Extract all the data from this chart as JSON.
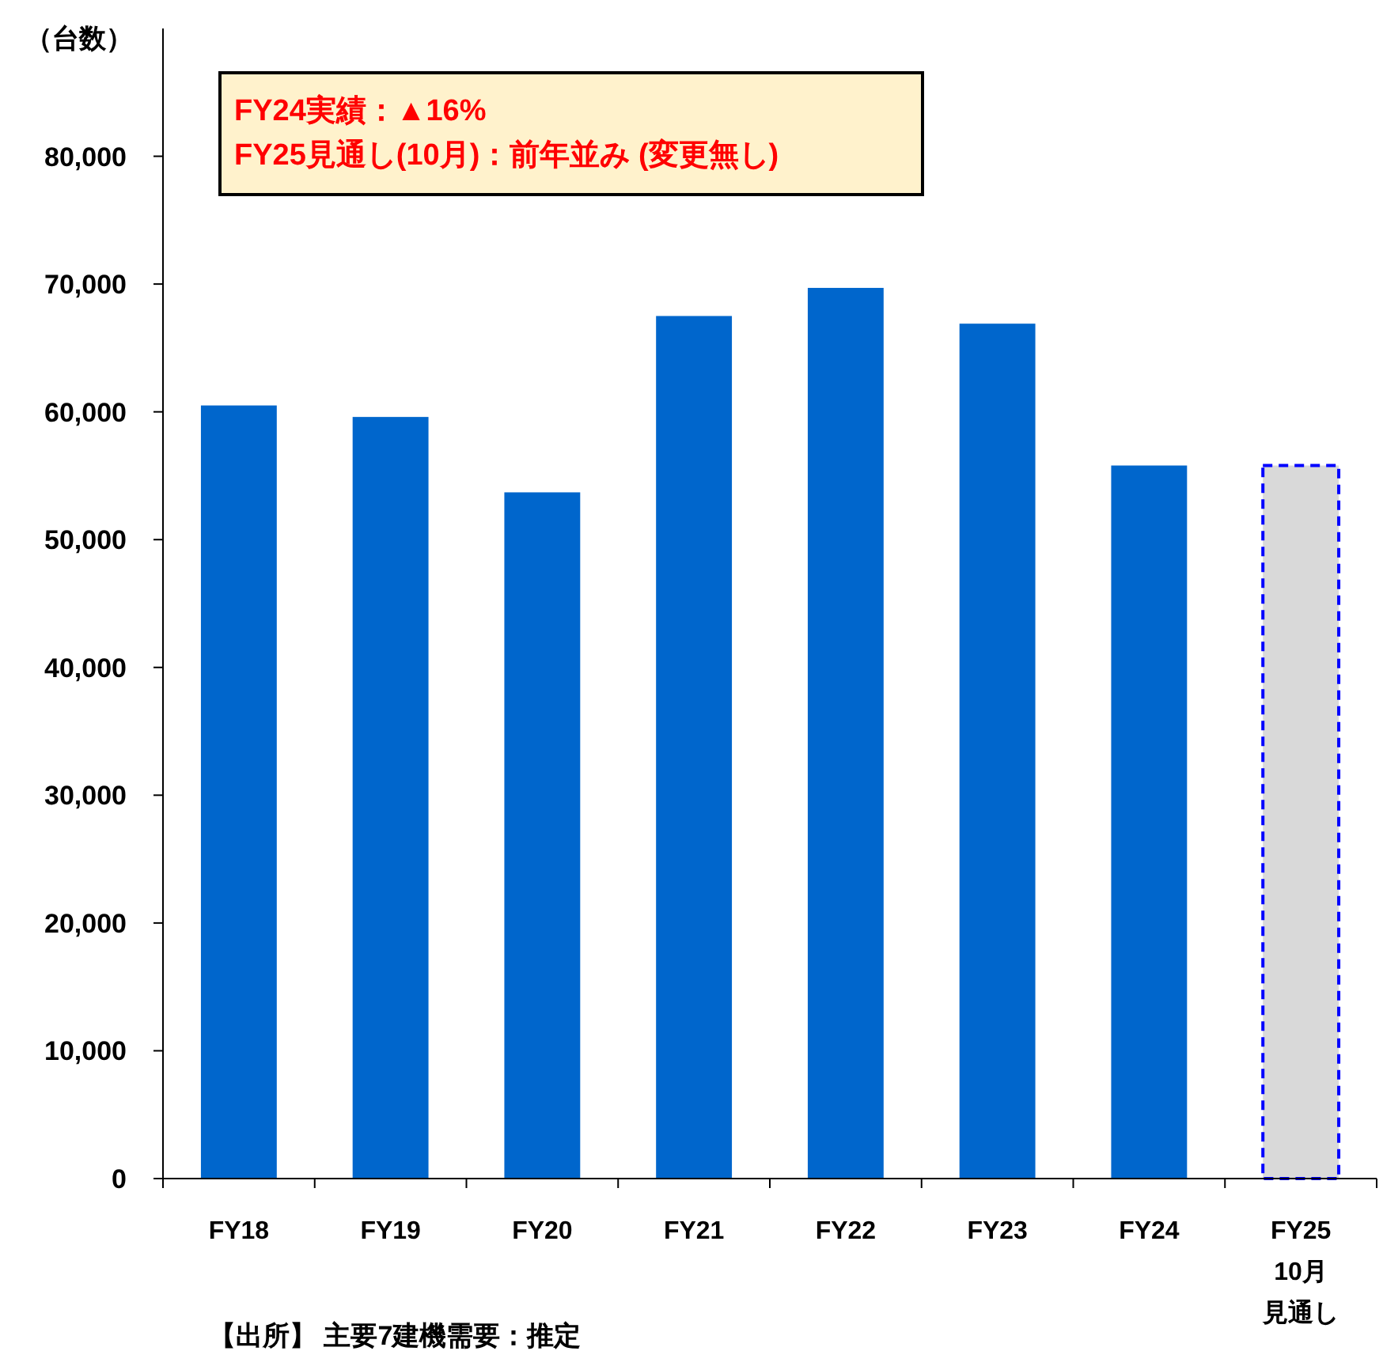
{
  "chart_data": {
    "type": "bar",
    "ylabel": "（台数）",
    "categories": [
      "FY18",
      "FY19",
      "FY20",
      "FY21",
      "FY22",
      "FY23",
      "FY24",
      "FY25 10月見通し"
    ],
    "stacked": true,
    "series": [
      {
        "color": "#0066cc",
        "values": [
          60500,
          59600,
          53700,
          67500,
          69700,
          66900,
          55800,
          null
        ]
      },
      {
        "color": "#d9d9d9",
        "line_style": "dashed",
        "values": [
          null,
          null,
          null,
          null,
          null,
          null,
          null,
          55800
        ]
      }
    ],
    "ylim": [
      0,
      90000
    ],
    "yticks": [
      {
        "value": 0,
        "label": "0"
      },
      {
        "value": 10000,
        "label": "10,000"
      },
      {
        "value": 20000,
        "label": "20,000"
      },
      {
        "value": 30000,
        "label": "30,000"
      },
      {
        "value": 40000,
        "label": "40,000"
      },
      {
        "value": 50000,
        "label": "50,000"
      },
      {
        "value": 60000,
        "label": "60,000"
      },
      {
        "value": 70000,
        "label": "70,000"
      },
      {
        "value": 80000,
        "label": "80,000"
      }
    ],
    "grid": false,
    "annotations": [
      "FY24実績：▲16%",
      "FY25見通し(10月)：前年並み (変更無し)",
      "【出所】 主要7建機需要：推定"
    ]
  }
}
